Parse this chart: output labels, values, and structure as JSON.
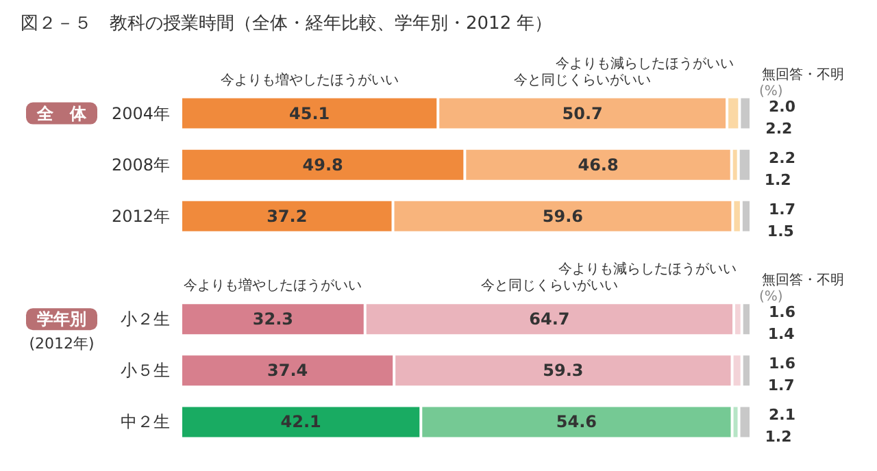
{
  "chart_data": {
    "type": "bar",
    "orientation": "horizontal",
    "stacked": true,
    "title": "図２－５　教科の授業時間（全体・経年比較、学年別・2012 年）",
    "categories": [
      "2004年",
      "2008年",
      "2012年",
      null,
      "小２生",
      "小５生",
      "中２生"
    ],
    "series": [
      {
        "name": "今よりも増やしたほうがいい",
        "colors": [
          "#f08a3c",
          "#f08a3c",
          "#f08a3c",
          null,
          "#d77f8d",
          "#d77f8d",
          "#19ab62"
        ],
        "values": [
          45.1,
          49.8,
          37.2,
          null,
          32.3,
          37.4,
          42.1
        ]
      },
      {
        "name": "今と同じくらいがいい",
        "colors": [
          "#f8b47c",
          "#f8b47c",
          "#f8b47c",
          null,
          "#eab4bc",
          "#eab4bc",
          "#75c994"
        ],
        "values": [
          50.7,
          46.8,
          59.6,
          null,
          64.7,
          59.3,
          54.6
        ]
      },
      {
        "name": "今よりも減らしたほうがいい",
        "colors": [
          "#fbd8a4",
          "#fbd8a4",
          "#fbd8a4",
          null,
          "#f3d3d8",
          "#f3d3d8",
          "#b7e5c6"
        ],
        "values": [
          2.2,
          1.2,
          1.5,
          null,
          1.4,
          1.7,
          1.2
        ]
      },
      {
        "name": "無回答・不明",
        "color": "#c8c8c8",
        "values": [
          2.0,
          2.2,
          1.7,
          null,
          1.6,
          1.6,
          2.1
        ],
        "value_labels": [
          "2.0",
          "2.2",
          "1.7",
          null,
          "1.6",
          "1.6",
          "2.1"
        ]
      }
    ],
    "data_labels": true,
    "legend": false,
    "annotations": [
      "全　体",
      "学年別",
      "(2012年)",
      "(%)",
      "(%)"
    ]
  }
}
